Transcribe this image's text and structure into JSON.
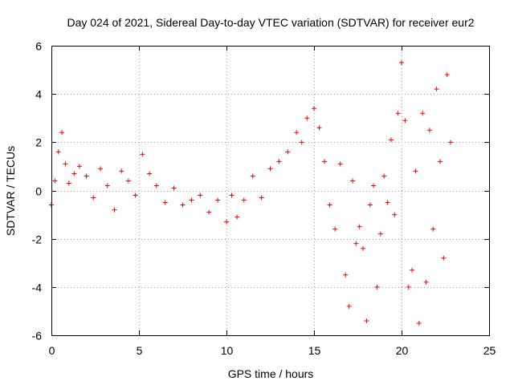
{
  "chart_data": {
    "type": "scatter",
    "title": "Day 024 of 2021, Sidereal Day-to-day VTEC variation (SDTVAR) for receiver eur2",
    "xlabel": "GPS time / hours",
    "ylabel": "SDTVAR / TECUs",
    "xlim": [
      0,
      25
    ],
    "ylim": [
      -6,
      6
    ],
    "xticks": [
      0,
      5,
      10,
      15,
      20,
      25
    ],
    "yticks": [
      -6,
      -4,
      -2,
      0,
      2,
      4,
      6
    ],
    "xtick_labels": [
      "0",
      "5",
      "10",
      "15",
      "20",
      "25"
    ],
    "ytick_labels": [
      "-6",
      "-4",
      "-2",
      "0",
      "2",
      "4",
      "6"
    ],
    "grid": true,
    "marker": "+",
    "series_color": "#ff0000",
    "series": [
      {
        "name": "SDTVAR",
        "x": [
          0.0,
          0.2,
          0.4,
          0.6,
          0.8,
          1.0,
          1.3,
          1.6,
          2.0,
          2.4,
          2.8,
          3.2,
          3.6,
          4.0,
          4.4,
          4.8,
          5.2,
          5.6,
          6.0,
          6.5,
          7.0,
          7.5,
          8.0,
          8.5,
          9.0,
          9.5,
          10.0,
          10.3,
          10.6,
          11.0,
          11.5,
          12.0,
          12.5,
          13.0,
          13.5,
          14.0,
          14.3,
          14.6,
          15.0,
          15.3,
          15.6,
          15.9,
          16.2,
          16.5,
          16.8,
          17.0,
          17.2,
          17.4,
          17.6,
          17.8,
          18.0,
          18.2,
          18.4,
          18.6,
          18.8,
          19.0,
          19.2,
          19.4,
          19.6,
          19.8,
          20.0,
          20.2,
          20.4,
          20.6,
          20.8,
          21.0,
          21.2,
          21.4,
          21.6,
          21.8,
          22.0,
          22.2,
          22.4,
          22.6,
          22.8
        ],
        "y": [
          -0.6,
          0.4,
          1.6,
          2.4,
          1.1,
          0.3,
          0.7,
          1.0,
          0.6,
          -0.3,
          0.9,
          0.2,
          -0.8,
          0.8,
          0.4,
          -0.2,
          1.5,
          0.7,
          0.2,
          -0.5,
          0.1,
          -0.6,
          -0.4,
          -0.2,
          -0.9,
          -0.4,
          -1.3,
          -0.2,
          -1.1,
          -0.4,
          0.6,
          -0.3,
          0.9,
          1.2,
          1.6,
          2.4,
          2.0,
          3.0,
          3.4,
          2.6,
          1.2,
          -0.6,
          -1.6,
          1.1,
          -3.5,
          -4.8,
          0.4,
          -2.2,
          -1.5,
          -2.4,
          -5.4,
          -0.6,
          0.2,
          -4.0,
          -1.8,
          0.6,
          -0.5,
          2.1,
          -1.0,
          3.2,
          5.3,
          2.9,
          -4.0,
          -3.3,
          0.8,
          -5.5,
          3.2,
          -3.8,
          2.5,
          -1.6,
          4.2,
          1.2,
          -2.8,
          4.8,
          2.0
        ]
      }
    ]
  }
}
